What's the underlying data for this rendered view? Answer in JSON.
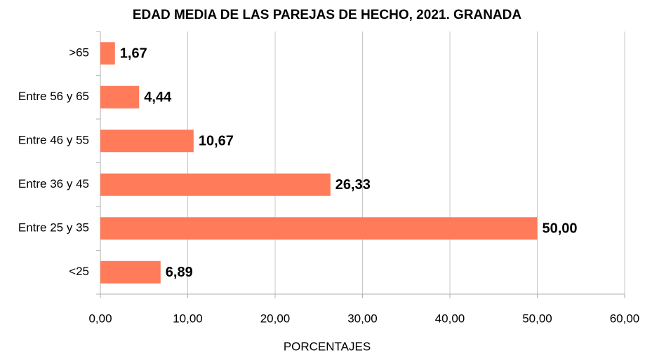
{
  "chart_data": {
    "type": "barh",
    "title": "EDAD MEDIA DE LAS PAREJAS DE HECHO, 2021. GRANADA",
    "x_label": "PORCENTAJES",
    "categories": [
      ">65",
      "Entre 56 y 65",
      "Entre 46 y 55",
      "Entre 36 y 45",
      "Entre 25 y 35",
      "<25"
    ],
    "values": [
      1.67,
      4.44,
      10.67,
      26.33,
      50,
      6.89
    ],
    "value_labels": [
      "1,67",
      "4,44",
      "10,67",
      "26,33",
      "50,00",
      "6,89"
    ],
    "color": "#ff7b5a",
    "xlim": [
      0,
      60
    ],
    "xticks": [
      {
        "value": 0,
        "label": "0,00"
      },
      {
        "value": 10,
        "label": "10,00"
      },
      {
        "value": 20,
        "label": "20,00"
      },
      {
        "value": 30,
        "label": "30,00"
      },
      {
        "value": 40,
        "label": "40,00"
      },
      {
        "value": 50,
        "label": "50,00"
      },
      {
        "value": 60,
        "label": "60,00"
      }
    ],
    "grid": true
  }
}
